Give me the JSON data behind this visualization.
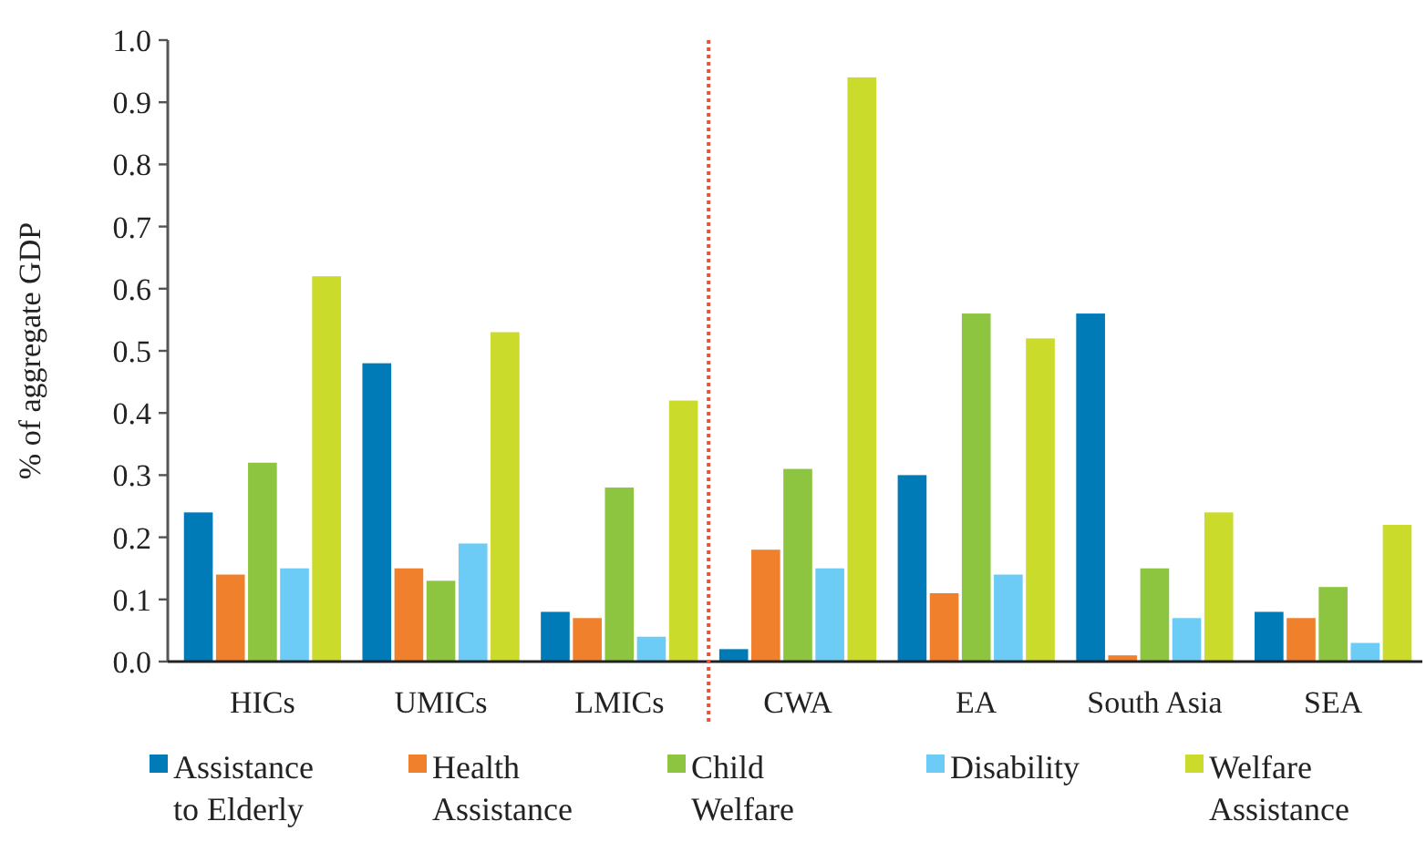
{
  "chart_data": {
    "type": "bar",
    "ylabel": "% of aggregate GDP",
    "categories": [
      "HICs",
      "UMICs",
      "LMICs",
      "CWA",
      "EA",
      "South Asia",
      "SEA"
    ],
    "series": [
      {
        "name": "Assistance to Elderly",
        "color": "#007bb8",
        "values": [
          0.24,
          0.48,
          0.08,
          0.02,
          0.3,
          0.56,
          0.08
        ]
      },
      {
        "name": "Health Assistance",
        "color": "#f0802c",
        "values": [
          0.14,
          0.15,
          0.07,
          0.18,
          0.11,
          0.01,
          0.07
        ]
      },
      {
        "name": "Child Welfare",
        "color": "#8dc540",
        "values": [
          0.32,
          0.13,
          0.28,
          0.31,
          0.56,
          0.15,
          0.12
        ]
      },
      {
        "name": "Disability",
        "color": "#6cccf5",
        "values": [
          0.15,
          0.19,
          0.04,
          0.15,
          0.14,
          0.07,
          0.03
        ]
      },
      {
        "name": "Welfare Assistance",
        "color": "#cadb2c",
        "values": [
          0.62,
          0.53,
          0.42,
          0.94,
          0.52,
          0.24,
          0.22
        ]
      }
    ],
    "ylim": [
      0,
      1
    ],
    "yticks": [
      {
        "value": 0,
        "label": "0.0"
      },
      {
        "value": 0.1,
        "label": "0.1"
      },
      {
        "value": 0.2,
        "label": "0.2"
      },
      {
        "value": 0.3,
        "label": "0.3"
      },
      {
        "value": 0.4,
        "label": "0.4"
      },
      {
        "value": 0.5,
        "label": "0.5"
      },
      {
        "value": 0.6,
        "label": "0.6"
      },
      {
        "value": 0.7,
        "label": "0.7"
      },
      {
        "value": 0.8,
        "label": "0.8"
      },
      {
        "value": 0.9,
        "label": "0.9"
      },
      {
        "value": 1,
        "label": "1.0"
      }
    ],
    "grid": false,
    "legend": "bottom"
  }
}
